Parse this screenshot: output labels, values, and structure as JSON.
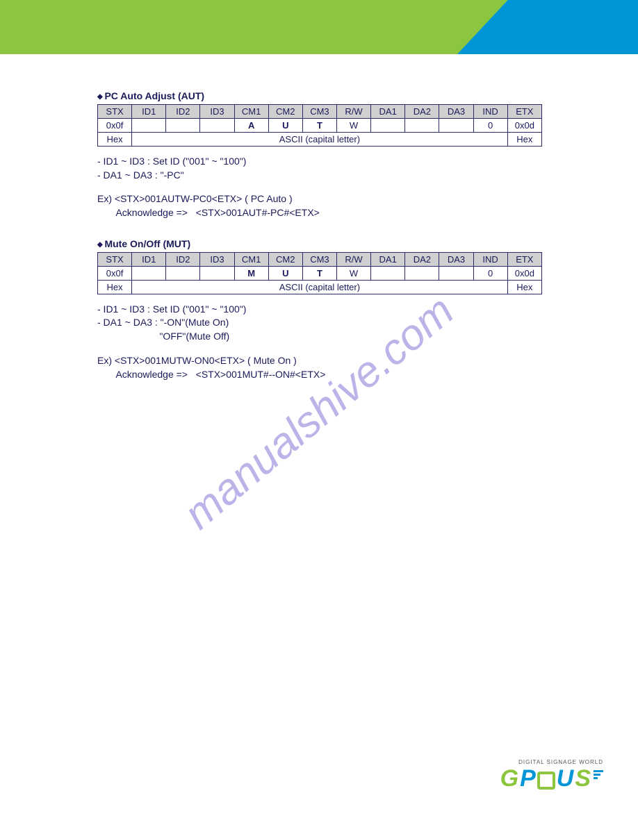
{
  "colors": {
    "header_green": "#8cc63f",
    "header_blue": "#0095d6",
    "text": "#1a1a5a",
    "table_header_bg": "#d0d0d0",
    "table_border": "#2a2a6a",
    "watermark": "#6a5acd"
  },
  "watermark": "manualshive.com",
  "sections": [
    {
      "title": "PC Auto Adjust (AUT)",
      "headers": [
        "STX",
        "ID1",
        "ID2",
        "ID3",
        "CM1",
        "CM2",
        "CM3",
        "R/W",
        "DA1",
        "DA2",
        "DA3",
        "IND",
        "ETX"
      ],
      "row1": [
        "0x0f",
        "",
        "",
        "",
        "A",
        "U",
        "T",
        "W",
        "",
        "",
        "",
        "0",
        "0x0d"
      ],
      "row2_col0": "Hex",
      "row2_mid": "ASCII (capital letter)",
      "row2_last": "Hex",
      "notes": [
        "- ID1 ~ ID3 : Set ID (\"001\" ~ \"100\")",
        "- DA1 ~ DA3 : \"-PC\""
      ],
      "ex": [
        "Ex) <STX>001AUTW-PC0<ETX> ( PC Auto )",
        "       Acknowledge =>   <STX>001AUT#-PC#<ETX>"
      ]
    },
    {
      "title": "Mute On/Off (MUT)",
      "headers": [
        "STX",
        "ID1",
        "ID2",
        "ID3",
        "CM1",
        "CM2",
        "CM3",
        "R/W",
        "DA1",
        "DA2",
        "DA3",
        "IND",
        "ETX"
      ],
      "row1": [
        "0x0f",
        "",
        "",
        "",
        "M",
        "U",
        "T",
        "W",
        "",
        "",
        "",
        "0",
        "0x0d"
      ],
      "row2_col0": "Hex",
      "row2_mid": "ASCII (capital letter)",
      "row2_last": "Hex",
      "notes": [
        "- ID1 ~ ID3 : Set ID (\"001\" ~ \"100\")",
        "- DA1 ~ DA3 : \"-ON\"(Mute On)",
        "                       \"OFF\"(Mute Off)"
      ],
      "ex": [
        "Ex) <STX>001MUTW-ON0<ETX> ( Mute On )",
        "       Acknowledge =>   <STX>001MUT#--ON#<ETX>"
      ]
    }
  ],
  "footer": {
    "tagline": "DIGITAL SIGNAGE WORLD"
  }
}
